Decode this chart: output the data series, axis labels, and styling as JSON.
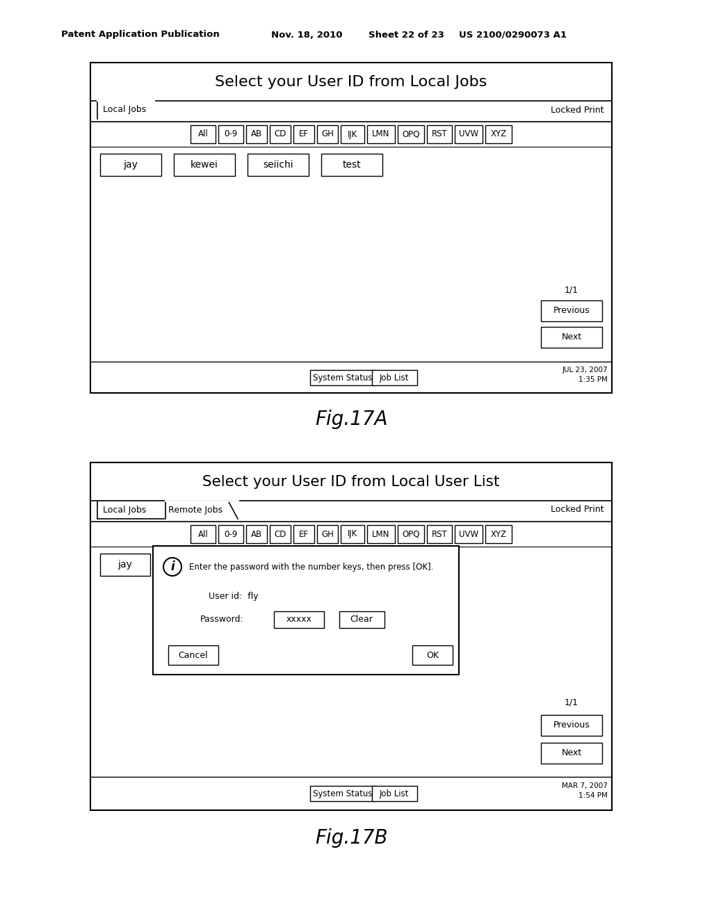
{
  "bg_color": "#ffffff",
  "header_text": "Patent Application Publication",
  "header_date": "Nov. 18, 2010",
  "header_sheet": "Sheet 22 of 23",
  "header_patent": "US 2100/0290073 A1",
  "fig17a": {
    "title": "Select your User ID from Local Jobs",
    "tab_local": "Local Jobs",
    "tab_locked": "Locked Print",
    "alpha_buttons": [
      "All",
      "0-9",
      "AB",
      "CD",
      "EF",
      "GH",
      "IJK",
      "LMN",
      "OPQ",
      "RST",
      "UVW",
      "XYZ"
    ],
    "user_buttons": [
      "jay",
      "kewei",
      "seiichi",
      "test"
    ],
    "page_indicator": "1/1",
    "nav_buttons": [
      "Previous",
      "Next"
    ],
    "status_buttons": [
      "System Status",
      "Job List"
    ],
    "datetime": "JUL 23, 2007\n1:35 PM",
    "caption": "Fig.17A"
  },
  "fig17b": {
    "title": "Select your User ID from Local User List",
    "tab_local": "Local Jobs",
    "tab_remote": "Remote Jobs",
    "tab_locked": "Locked Print",
    "alpha_buttons": [
      "All",
      "0-9",
      "AB",
      "CD",
      "EF",
      "GH",
      "IJK",
      "LMN",
      "OPQ",
      "RST",
      "UVW",
      "XYZ"
    ],
    "user_button": "jay",
    "dialog": {
      "icon": "i",
      "message": "Enter the password with the number keys, then press [OK].",
      "user_id_label": "User id:  fly",
      "password_label": "Password:",
      "password_value": "xxxxx",
      "clear_label": "Clear",
      "cancel_label": "Cancel",
      "ok_label": "OK"
    },
    "page_indicator": "1/1",
    "nav_buttons": [
      "Previous",
      "Next"
    ],
    "status_buttons": [
      "System Status",
      "Job List"
    ],
    "datetime": "MAR 7, 2007\n1:54 PM",
    "caption": "Fig.17B"
  }
}
